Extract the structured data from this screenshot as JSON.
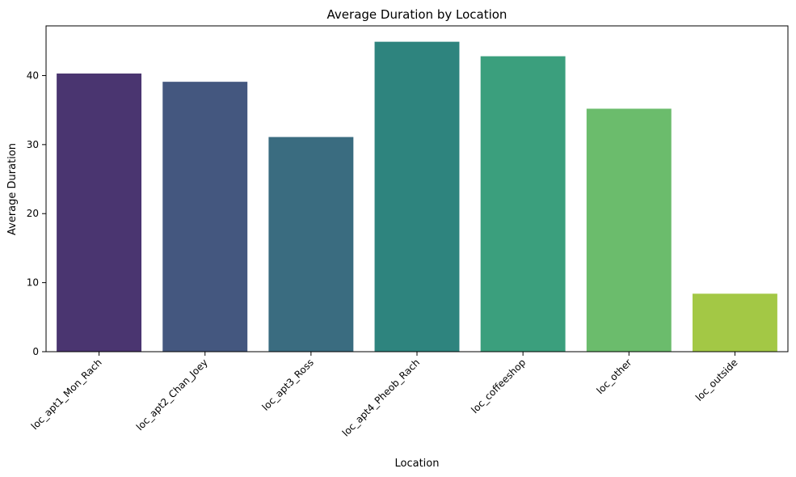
{
  "chart_data": {
    "type": "bar",
    "title": "Average Duration by Location",
    "xlabel": "Location",
    "ylabel": "Average Duration",
    "categories": [
      "loc_apt1_Mon_Rach",
      "loc_apt2_Chan_Joey",
      "loc_apt3_Ross",
      "loc_apt4_Pheob_Rach",
      "loc_coffeeshop",
      "loc_other",
      "loc_outside"
    ],
    "values": [
      40.3,
      39.1,
      31.1,
      44.9,
      42.8,
      35.2,
      8.4
    ],
    "colors": [
      "#4a3570",
      "#44577f",
      "#3a6c80",
      "#2e847e",
      "#3b9f7d",
      "#6bbc6c",
      "#a3c845"
    ],
    "ylim": [
      0,
      47.2
    ],
    "yticks": [
      0,
      10,
      20,
      30,
      40
    ],
    "grid": false,
    "legend": false
  }
}
